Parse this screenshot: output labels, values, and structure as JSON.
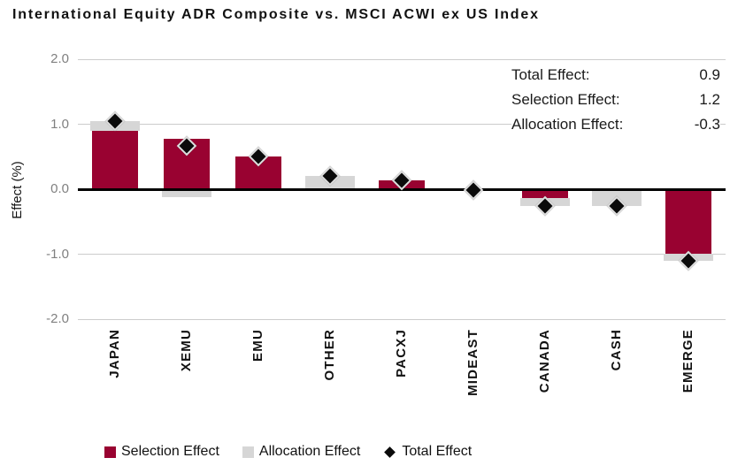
{
  "title": "International Equity ADR Composite vs. MSCI ACWI ex US Index",
  "summary": [
    {
      "label": "Total Effect:",
      "value": "0.9"
    },
    {
      "label": "Selection Effect:",
      "value": "1.2"
    },
    {
      "label": "Allocation Effect:",
      "value": "-0.3"
    }
  ],
  "chart_data": {
    "type": "bar",
    "title": "International Equity ADR Composite vs. MSCI ACWI ex US Index",
    "ylabel": "Effect (%)",
    "xlabel": "",
    "ylim": [
      -2.0,
      2.0
    ],
    "ytick_labels": [
      "2.0",
      "1.0",
      "0.0",
      "-1.0",
      "-2.0"
    ],
    "ytick_values": [
      2,
      1,
      0,
      -1,
      -2
    ],
    "grid": true,
    "stacking": "bars stacked by sign; diamond marks total",
    "legend_position": "bottom",
    "categories": [
      "JAPAN",
      "XEMU",
      "EMU",
      "OTHER",
      "PACXJ",
      "MIDEAST",
      "CANADA",
      "CASH",
      "EMERGE"
    ],
    "series": [
      {
        "name": "Selection Effect",
        "type": "bar",
        "color": "#990231",
        "values": [
          0.9,
          0.78,
          0.51,
          0.0,
          0.14,
          0.0,
          -0.14,
          0.0,
          -0.99
        ]
      },
      {
        "name": "Allocation Effect",
        "type": "bar",
        "color": "#d6d6d6",
        "values": [
          0.15,
          -0.12,
          0.0,
          0.2,
          0.0,
          0.0,
          -0.12,
          -0.26,
          -0.11
        ]
      },
      {
        "name": "Total Effect",
        "type": "scatter",
        "marker": "diamond",
        "color": "#0b0b0b",
        "values": [
          1.05,
          0.66,
          0.51,
          0.2,
          0.14,
          -0.02,
          -0.26,
          -0.26,
          -1.1
        ]
      }
    ],
    "summary_annotation": {
      "total_effect": 0.9,
      "selection_effect": 1.2,
      "allocation_effect": -0.3
    }
  },
  "legend": [
    {
      "label": "Selection Effect",
      "swatch": "square",
      "color": "#990231"
    },
    {
      "label": "Allocation Effect",
      "swatch": "square",
      "color": "#d6d6d6"
    },
    {
      "label": "Total Effect",
      "swatch": "diamond",
      "color": "#0b0b0b"
    }
  ],
  "colors": {
    "selection": "#990231",
    "allocation": "#d6d6d6",
    "total_marker": "#0b0b0b",
    "gridline": "#cccccc",
    "axis": "#000000",
    "tick_text": "#808080",
    "text": "#111111"
  }
}
